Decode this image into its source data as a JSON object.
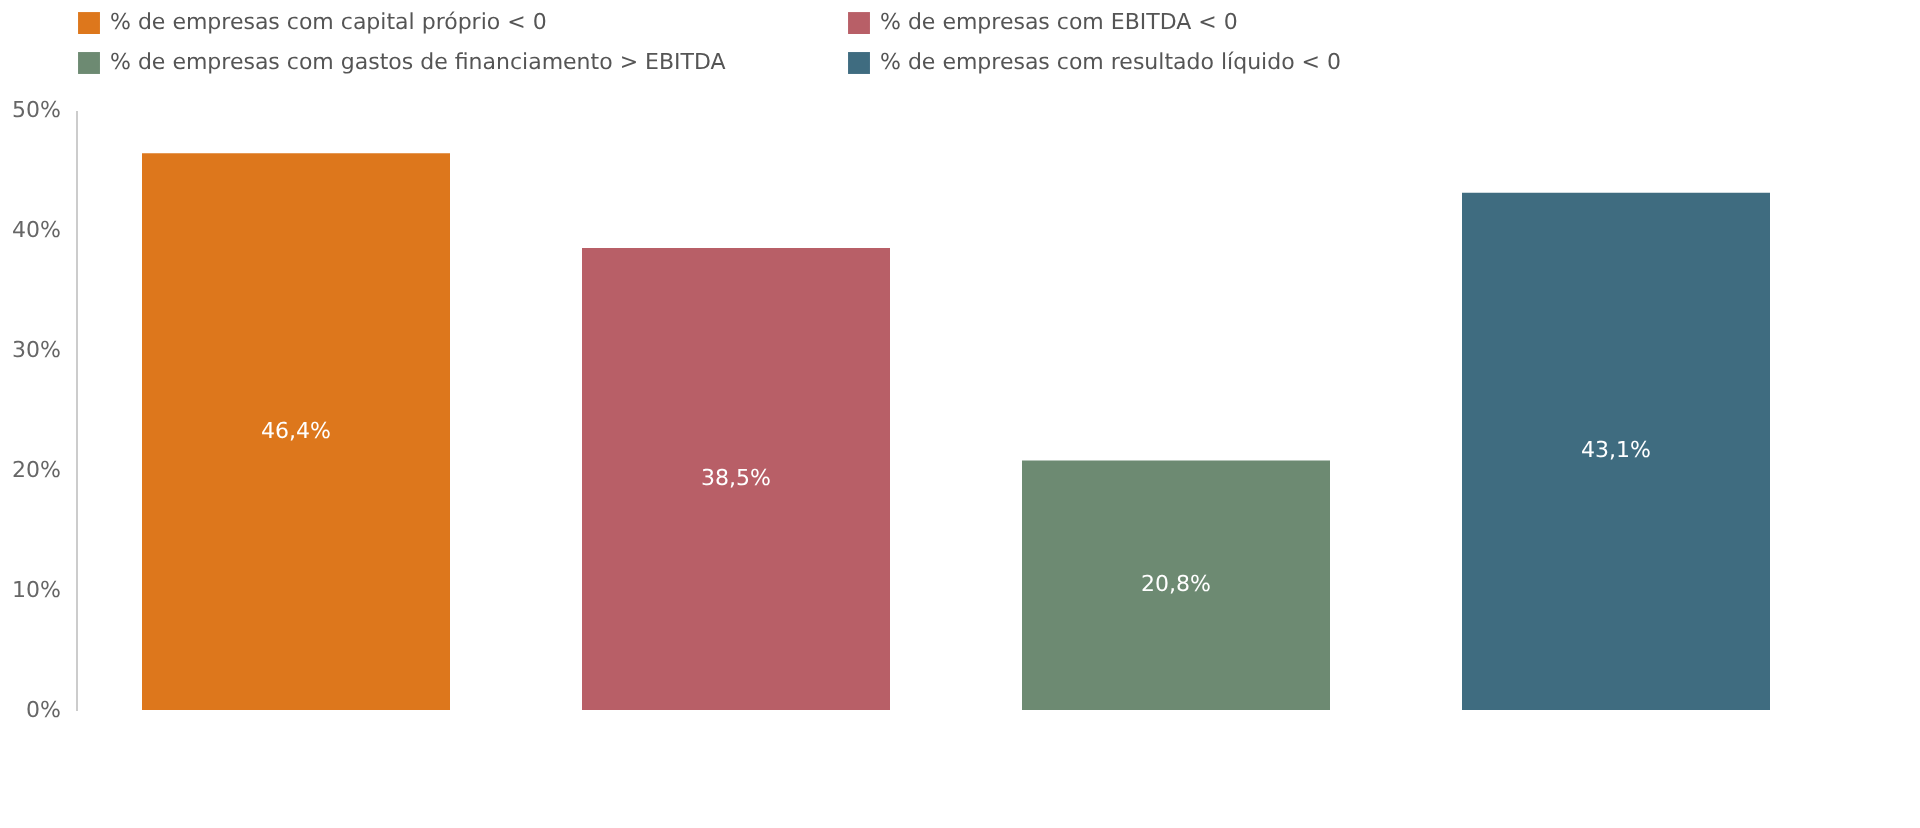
{
  "chart_data": {
    "type": "bar",
    "stacked": true,
    "categories": [
      null,
      null,
      null,
      null
    ],
    "series": [
      {
        "name": "% de empresas com capital próprio < 0",
        "color": "#dd771c",
        "values": [
          46.4,
          null,
          null,
          null
        ],
        "value_labels": [
          "46,4%",
          null,
          null,
          null
        ]
      },
      {
        "name": "% de empresas com EBITDA < 0",
        "color": "#b85f67",
        "values": [
          null,
          38.5,
          null,
          null
        ],
        "value_labels": [
          null,
          "38,5%",
          null,
          null
        ]
      },
      {
        "name": "% de empresas com gastos de financiamento > EBITDA",
        "color": "#6d8a72",
        "values": [
          null,
          null,
          20.8,
          null
        ],
        "value_labels": [
          null,
          null,
          "20,8%",
          null
        ]
      },
      {
        "name": "% de empresas com resultado líquido < 0",
        "color": "#3f6c80",
        "values": [
          null,
          null,
          null,
          43.1
        ],
        "value_labels": [
          null,
          null,
          null,
          "43,1%"
        ]
      }
    ],
    "ylim": [
      0,
      50
    ],
    "yticks": [
      {
        "value": 0,
        "label": "0%"
      },
      {
        "value": 10,
        "label": "10%"
      },
      {
        "value": 20,
        "label": "20%"
      },
      {
        "value": 30,
        "label": "30%"
      },
      {
        "value": 40,
        "label": "40%"
      },
      {
        "value": 50,
        "label": "50%"
      }
    ],
    "grid": false,
    "legend": "top left",
    "tick_labels": "y"
  }
}
